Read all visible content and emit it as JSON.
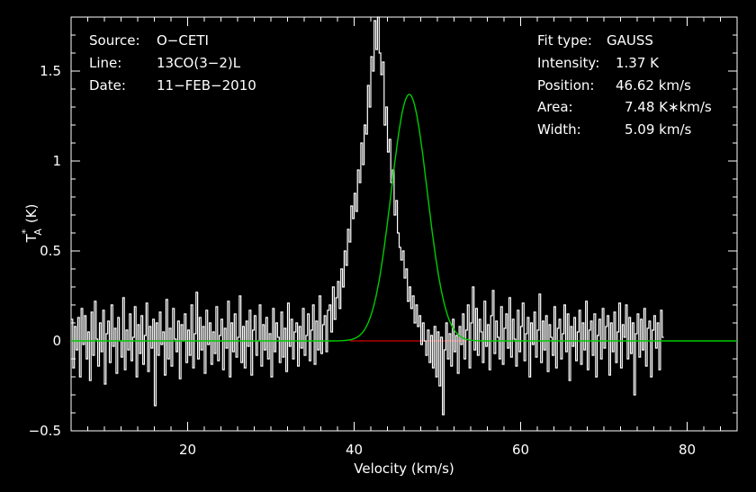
{
  "chart_data": {
    "type": "line",
    "xlabel": "Velocity (km/s)",
    "ylabel": "T*A (K)",
    "ylabel_main": "T",
    "ylabel_sup": "*",
    "ylabel_sub": "A",
    "ylabel_unit": "(K)",
    "xlim": [
      6,
      86
    ],
    "ylim": [
      -0.5,
      1.8
    ],
    "xticks": [
      20,
      40,
      60,
      80
    ],
    "xtick_labels": [
      "20",
      "40",
      "60",
      "80"
    ],
    "yticks": [
      -0.5,
      0,
      0.5,
      1,
      1.5
    ],
    "ytick_labels": [
      "−0.5",
      "0",
      "0.5",
      "1",
      "1.5"
    ],
    "colors": {
      "background": "#000000",
      "axes": "#ffffff",
      "spectrum": "#ffffff",
      "fit": "#00cc00",
      "baseline_region": "#cc0000"
    },
    "annotations_left": [
      {
        "label": "Source:",
        "value": "O−CETI"
      },
      {
        "label": "Line:",
        "value": "13CO(3−2)L"
      },
      {
        "label": "Date:",
        "value": "11−FEB−2010"
      }
    ],
    "annotations_right": [
      {
        "label": "Fit type:",
        "value": "GAUSS"
      },
      {
        "label": "Intensity:",
        "value": "1.37 K"
      },
      {
        "label": "Position:",
        "value": "46.62 km/s"
      },
      {
        "label": "Area:",
        "value": "7.48 K∗km/s"
      },
      {
        "label": "Width:",
        "value": "5.09 km/s"
      }
    ],
    "fit": {
      "function": "gaussian",
      "amplitude": 1.37,
      "center": 46.62,
      "fwhm": 5.09,
      "baseline": 0
    },
    "baseline_segment": {
      "x": [
        39.5,
        53.5
      ],
      "y": 0
    },
    "series": [
      {
        "name": "spectrum",
        "style": "step",
        "x_start": 6.1,
        "x_step": 0.2,
        "values": [
          0.12,
          -0.15,
          0.08,
          -0.05,
          0.13,
          -0.2,
          0.18,
          -0.02,
          0.14,
          -0.1,
          0.05,
          -0.22,
          0.16,
          -0.08,
          0.22,
          0.01,
          -0.14,
          0.1,
          -0.06,
          0.17,
          -0.24,
          0.04,
          0.11,
          -0.12,
          0.2,
          -0.03,
          0.07,
          -0.18,
          0.13,
          0.0,
          -0.09,
          0.24,
          -0.16,
          0.06,
          -0.05,
          0.15,
          -0.11,
          0.02,
          0.19,
          -0.2,
          0.09,
          -0.07,
          0.14,
          -0.13,
          0.03,
          0.21,
          -0.17,
          0.08,
          -0.04,
          0.12,
          -0.36,
          0.1,
          -0.08,
          0.16,
          -0.02,
          0.05,
          -0.19,
          0.23,
          -0.1,
          0.07,
          -0.14,
          0.18,
          0.01,
          -0.06,
          0.11,
          -0.21,
          0.09,
          0.0,
          0.15,
          -0.12,
          0.06,
          -0.08,
          0.2,
          -0.15,
          0.04,
          0.27,
          -0.1,
          0.13,
          -0.05,
          0.08,
          -0.18,
          0.17,
          -0.02,
          0.1,
          -0.13,
          0.05,
          -0.07,
          0.19,
          -0.11,
          0.03,
          0.12,
          -0.16,
          0.07,
          -0.04,
          0.22,
          -0.2,
          0.1,
          -0.06,
          0.15,
          -0.09,
          0.02,
          0.25,
          -0.12,
          0.08,
          -0.15,
          0.11,
          -0.03,
          0.17,
          -0.19,
          0.06,
          0.14,
          -0.08,
          0.0,
          0.2,
          -0.14,
          0.09,
          -0.05,
          0.13,
          -0.1,
          0.04,
          -0.2,
          0.18,
          -0.06,
          0.1,
          0.02,
          -0.12,
          0.16,
          -0.09,
          0.07,
          -0.17,
          0.21,
          -0.03,
          0.12,
          -0.1,
          0.05,
          0.1,
          -0.14,
          0.08,
          -0.04,
          0.18,
          -0.08,
          0.03,
          0.15,
          -0.11,
          0.06,
          0.2,
          -0.13,
          0.11,
          -0.05,
          0.25,
          -0.07,
          0.09,
          0.14,
          -0.06,
          0.17,
          0.2,
          0.05,
          0.3,
          0.12,
          0.24,
          0.33,
          0.18,
          0.4,
          0.3,
          0.5,
          0.42,
          0.62,
          0.55,
          0.75,
          0.68,
          0.82,
          0.72,
          0.95,
          0.88,
          1.1,
          0.98,
          1.2,
          1.15,
          1.42,
          1.3,
          1.58,
          1.5,
          1.78,
          1.62,
          1.8,
          1.6,
          1.48,
          1.55,
          1.2,
          1.3,
          1.05,
          1.12,
          0.88,
          0.95,
          0.7,
          0.78,
          0.6,
          0.52,
          0.45,
          0.5,
          0.35,
          0.4,
          0.22,
          0.3,
          0.18,
          0.25,
          0.1,
          0.2,
          0.08,
          0.14,
          -0.02,
          0.1,
          0.0,
          -0.08,
          0.06,
          -0.12,
          0.03,
          -0.15,
          0.08,
          -0.2,
          0.05,
          -0.25,
          0.02,
          -0.41,
          -0.05,
          0.1,
          -0.1,
          0.04,
          -0.14,
          0.12,
          -0.06,
          0.03,
          -0.18,
          0.08,
          -0.02,
          0.15,
          -0.1,
          0.06,
          0.2,
          -0.15,
          0.1,
          0.3,
          -0.05,
          0.18,
          -0.08,
          0.12,
          0.05,
          -0.12,
          0.22,
          -0.03,
          0.09,
          -0.16,
          0.14,
          0.28,
          -0.07,
          0.11,
          0.02,
          -0.1,
          0.19,
          -0.13,
          0.07,
          0.15,
          -0.04,
          0.24,
          -0.09,
          0.12,
          0.01,
          -0.14,
          0.17,
          -0.06,
          0.08,
          0.21,
          -0.11,
          0.04,
          0.13,
          -0.2,
          0.1,
          -0.02,
          0.16,
          -0.09,
          0.06,
          0.26,
          -0.12,
          0.11,
          -0.05,
          0.14,
          -0.17,
          0.09,
          0.02,
          -0.08,
          0.19,
          -0.15,
          0.07,
          0.12,
          -0.1,
          0.04,
          0.2,
          -0.06,
          0.15,
          -0.22,
          0.08,
          -0.03,
          0.13,
          -0.11,
          0.05,
          0.17,
          -0.13,
          0.1,
          -0.05,
          0.22,
          -0.16,
          0.06,
          0.11,
          -0.08,
          0.15,
          -0.2,
          0.03,
          0.12,
          -0.1,
          0.18,
          -0.04,
          0.08,
          0.14,
          -0.19,
          0.1,
          -0.06,
          0.16,
          -0.12,
          0.05,
          0.21,
          -0.15,
          0.09,
          0.02,
          0.2,
          -0.1,
          0.13,
          -0.07,
          0.1,
          -0.3,
          0.04,
          0.15,
          -0.09,
          0.12,
          -0.05,
          0.18,
          -0.14,
          0.07,
          0.11,
          -0.2,
          0.06,
          0.14,
          -0.04,
          0.1,
          -0.16,
          0.17,
          0.02
        ]
      }
    ]
  }
}
